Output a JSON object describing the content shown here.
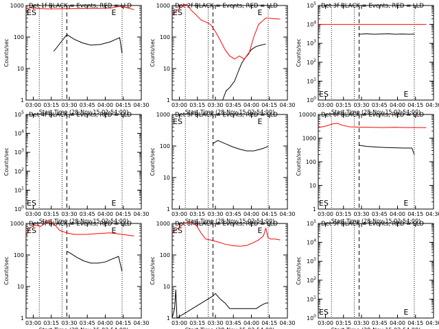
{
  "figure": {
    "ylabel": "Counts/sec",
    "xlabel": "Start Time (28-Nov-15 02:54:00)",
    "x_ticks": [
      "03:00",
      "03:15",
      "03:30",
      "03:45",
      "04:00",
      "04:15",
      "04:30"
    ],
    "colors": {
      "events": "#000000",
      "lld": "#ff0000",
      "axis": "#000000"
    }
  },
  "chart_data": [
    {
      "type": "line",
      "title": "Det 1f BLACK = Events, RED = LLD",
      "y_scale": "log",
      "ylim": [
        1,
        1000
      ],
      "y_ticks": [
        "1",
        "10",
        "100",
        "1000"
      ],
      "marker_labels": [
        "ES",
        "E"
      ],
      "series": [
        {
          "name": "Events",
          "color": "#000000",
          "x_min": [
            23,
            34,
            40,
            47,
            54,
            62,
            70,
            75,
            78,
            80
          ],
          "y": [
            35,
            120,
            85,
            65,
            55,
            58,
            70,
            85,
            95,
            30
          ]
        },
        {
          "name": "LLD",
          "color": "#ff0000",
          "x_min": [
            0,
            3,
            10,
            20,
            30,
            45,
            60,
            70,
            75,
            80,
            86,
            90
          ],
          "y": [
            600,
            850,
            800,
            780,
            790,
            800,
            810,
            820,
            900,
            950,
            800,
            750
          ]
        }
      ]
    },
    {
      "type": "line",
      "title": "Det 2f BLACK = Events, RED = LLD",
      "y_scale": "log",
      "ylim": [
        1,
        1000
      ],
      "y_ticks": [
        "1",
        "10",
        "100",
        "1000"
      ],
      "marker_labels": [
        "ES",
        "E"
      ],
      "series": [
        {
          "name": "Events",
          "color": "#000000",
          "x_min": [
            42,
            45,
            48,
            52,
            55,
            58,
            62,
            66,
            70,
            74,
            78
          ],
          "y": [
            1,
            2,
            2.5,
            4,
            8,
            15,
            25,
            40,
            50,
            55,
            60
          ]
        },
        {
          "name": "LLD",
          "color": "#ff0000",
          "x_min": [
            0,
            4,
            8,
            12,
            16,
            20,
            24,
            28,
            32,
            36,
            40,
            44,
            48,
            52,
            56,
            60,
            64,
            68,
            72,
            78,
            85,
            90
          ],
          "y": [
            500,
            700,
            900,
            1100,
            700,
            500,
            350,
            300,
            250,
            150,
            80,
            40,
            25,
            20,
            25,
            20,
            30,
            100,
            250,
            400,
            380,
            370
          ]
        }
      ]
    },
    {
      "type": "line",
      "title": "Det 3f BLACK = Events, RED = LLD",
      "y_scale": "log",
      "ylim": [
        1,
        100000
      ],
      "y_ticks": [
        "10^0",
        "10^1",
        "10^2",
        "10^3",
        "10^4",
        "10^5"
      ],
      "marker_labels": [
        "ES",
        "E"
      ],
      "series": [
        {
          "name": "Events",
          "color": "#000000",
          "x_min": [
            34,
            40,
            46,
            52,
            58,
            64,
            70,
            76,
            80
          ],
          "y": [
            3000,
            3200,
            3000,
            3100,
            3200,
            3000,
            3100,
            3000,
            3100
          ]
        },
        {
          "name": "LLD",
          "color": "#ff0000",
          "x_min": [
            0,
            20,
            40,
            60,
            80,
            90
          ],
          "y": [
            10000,
            10000,
            10000,
            10000,
            10000,
            10000
          ]
        }
      ]
    },
    {
      "type": "line",
      "title": "Det 4f BLACK = Events, RED = LLD",
      "y_scale": "log",
      "ylim": [
        1,
        100000
      ],
      "y_ticks": [
        "10^0",
        "10^1",
        "10^2",
        "10^3",
        "10^4",
        "10^5"
      ],
      "marker_labels": [
        "ES",
        "E"
      ],
      "series": []
    },
    {
      "type": "line",
      "title": "Det 5f BLACK = Events, RED = LLD",
      "y_scale": "log",
      "ylim": [
        1,
        1000
      ],
      "y_ticks": [
        "1",
        "10",
        "100",
        "1000"
      ],
      "marker_labels": [
        "ES",
        "E"
      ],
      "series": [
        {
          "name": "Events",
          "color": "#000000",
          "x_min": [
            34,
            38,
            44,
            50,
            56,
            62,
            68,
            74,
            78,
            80
          ],
          "y": [
            120,
            150,
            120,
            95,
            80,
            70,
            70,
            80,
            90,
            100
          ]
        }
      ]
    },
    {
      "type": "line",
      "title": "Det 6f BLACK = Events, RED = LLD",
      "y_scale": "log",
      "ylim": [
        1,
        10000
      ],
      "y_ticks": [
        "1",
        "10",
        "100",
        "1000",
        "10000"
      ],
      "marker_labels": [
        "ES",
        "E"
      ],
      "series": [
        {
          "name": "Events",
          "color": "#000000",
          "x_min": [
            34,
            40,
            48,
            56,
            64,
            72,
            78,
            80
          ],
          "y": [
            500,
            450,
            420,
            400,
            390,
            380,
            380,
            200
          ]
        },
        {
          "name": "LLD",
          "color": "#ff0000",
          "x_min": [
            0,
            6,
            12,
            16,
            20,
            26,
            34,
            44,
            54,
            64,
            74,
            82,
            90
          ],
          "y": [
            2800,
            3200,
            4000,
            4200,
            3500,
            3000,
            2900,
            2850,
            2800,
            2850,
            2800,
            2800,
            2800
          ]
        }
      ]
    },
    {
      "type": "line",
      "title": "Det 7f BLACK = Events, RED = LLD",
      "y_scale": "log",
      "ylim": [
        1,
        1000
      ],
      "y_ticks": [
        "1",
        "10",
        "100",
        "1000"
      ],
      "marker_labels": [
        "ES",
        "E"
      ],
      "series": [
        {
          "name": "Events",
          "color": "#000000",
          "x_min": [
            34,
            36,
            42,
            48,
            54,
            60,
            66,
            72,
            77,
            80
          ],
          "y": [
            130,
            120,
            85,
            65,
            55,
            55,
            60,
            75,
            90,
            30
          ]
        },
        {
          "name": "LLD",
          "color": "#ff0000",
          "x_min": [
            0,
            3,
            7,
            12,
            16,
            20,
            24,
            28,
            34,
            40,
            50,
            60,
            70,
            80,
            90
          ],
          "y": [
            400,
            700,
            900,
            800,
            1000,
            1200,
            900,
            600,
            500,
            450,
            450,
            480,
            500,
            450,
            400
          ]
        }
      ]
    },
    {
      "type": "line",
      "title": "Det 8f BLACK = Events, RED = LLD",
      "y_scale": "log",
      "ylim": [
        1,
        1000
      ],
      "y_ticks": [
        "1",
        "10",
        "100",
        "1000"
      ],
      "marker_labels": [
        "ES",
        "E"
      ],
      "series": [
        {
          "name": "Events",
          "color": "#000000",
          "x_min": [
            0,
            2,
            3,
            4,
            34,
            36,
            40,
            44,
            48,
            54,
            60,
            66,
            70,
            74,
            78,
            80
          ],
          "y": [
            1,
            2,
            8,
            1,
            5,
            6,
            4,
            3,
            2,
            2,
            2,
            2,
            2,
            2.5,
            3,
            3
          ]
        },
        {
          "name": "LLD",
          "color": "#ff0000",
          "x_min": [
            0,
            2,
            5,
            10,
            16,
            20,
            24,
            28,
            32,
            38,
            44,
            50,
            56,
            62,
            68,
            72,
            76,
            78,
            80,
            82,
            86,
            90
          ],
          "y": [
            500,
            600,
            700,
            1000,
            1000,
            900,
            500,
            320,
            300,
            260,
            220,
            200,
            190,
            200,
            250,
            300,
            400,
            700,
            350,
            320,
            320,
            300
          ]
        }
      ]
    },
    {
      "type": "line",
      "title": "Det 9f BLACK = Events, RED = LLD",
      "y_scale": "log",
      "ylim": [
        1,
        100000
      ],
      "y_ticks": [
        "10^0",
        "10^1",
        "10^2",
        "10^3",
        "10^4",
        "10^5"
      ],
      "marker_labels": [
        "ES",
        "E"
      ],
      "series": []
    }
  ]
}
